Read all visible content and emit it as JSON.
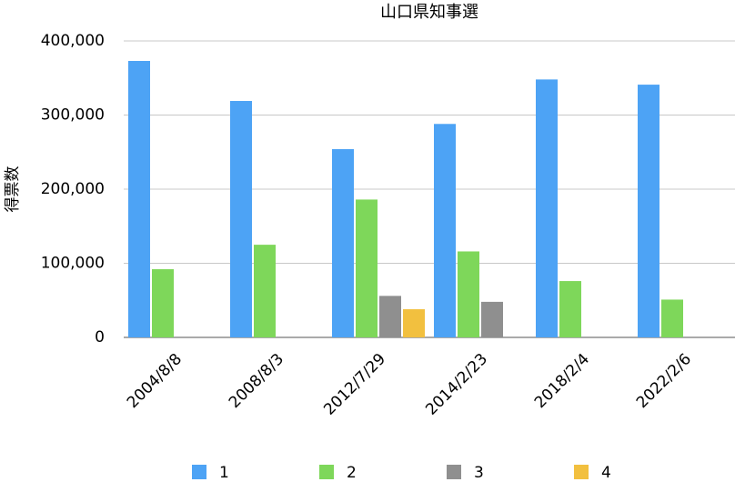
{
  "chart_data": {
    "type": "bar",
    "title": "山口県知事選",
    "y_label": "得票数",
    "categories": [
      "2004/8/8",
      "2008/8/3",
      "2012/7/29",
      "2014/2/23",
      "2018/2/4",
      "2022/2/6"
    ],
    "series": [
      {
        "name": "1",
        "color": "#4da3f5",
        "values": [
          373000,
          319000,
          254000,
          288000,
          348000,
          341000
        ]
      },
      {
        "name": "2",
        "color": "#7ed75a",
        "values": [
          92000,
          125000,
          186000,
          116000,
          76000,
          51000
        ]
      },
      {
        "name": "3",
        "color": "#8f8f8f",
        "values": [
          null,
          null,
          56000,
          48000,
          null,
          null
        ]
      },
      {
        "name": "4",
        "color": "#f2c03f",
        "values": [
          null,
          null,
          38000,
          null,
          null,
          null
        ]
      }
    ],
    "ylim": [
      0,
      400000
    ],
    "yticks": [
      0,
      {
        "value": 100000,
        "label": "100,000"
      },
      {
        "value": 200000,
        "label": "200,000"
      },
      {
        "value": 300000,
        "label": "300,000"
      },
      {
        "value": 400000,
        "label": "400,000"
      }
    ],
    "grid": true,
    "legend": "bottom"
  }
}
